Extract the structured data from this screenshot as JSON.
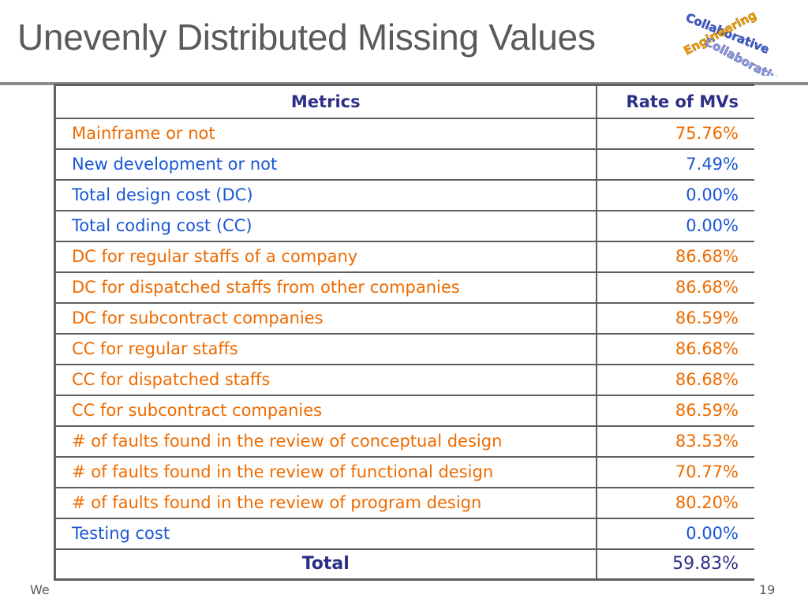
{
  "slide": {
    "title": "Unevenly Distributed Missing Values",
    "footer_left": "We",
    "page_number": "19"
  },
  "logo": {
    "lines": [
      "Collaborative",
      "Engineering",
      "Collaborative"
    ],
    "colors": [
      "#3a5fd0",
      "#f5a000",
      "#2d2f86"
    ]
  },
  "table": {
    "headers": [
      "Metrics",
      "Rate of MVs"
    ],
    "rows": [
      {
        "metric": "Mainframe or not",
        "rate": "75.76%",
        "color": "orange"
      },
      {
        "metric": "New development or not",
        "rate": "7.49%",
        "color": "blue"
      },
      {
        "metric": "Total design cost (DC)",
        "rate": "0.00%",
        "color": "blue"
      },
      {
        "metric": "Total coding cost (CC)",
        "rate": "0.00%",
        "color": "blue"
      },
      {
        "metric": "DC for regular staffs of a company",
        "rate": "86.68%",
        "color": "orange"
      },
      {
        "metric": "DC for dispatched staffs from other companies",
        "rate": "86.68%",
        "color": "orange"
      },
      {
        "metric": "DC for subcontract companies",
        "rate": "86.59%",
        "color": "orange"
      },
      {
        "metric": "CC for regular staffs",
        "rate": "86.68%",
        "color": "orange"
      },
      {
        "metric": "CC for dispatched staffs",
        "rate": "86.68%",
        "color": "orange"
      },
      {
        "metric": "CC for subcontract companies",
        "rate": "86.59%",
        "color": "orange"
      },
      {
        "metric": "# of faults found in the review of conceptual design",
        "rate": "83.53%",
        "color": "orange"
      },
      {
        "metric": "# of faults found in the review of functional design",
        "rate": "70.77%",
        "color": "orange"
      },
      {
        "metric": "# of faults found in the review of program design",
        "rate": "80.20%",
        "color": "orange"
      },
      {
        "metric": "Testing cost",
        "rate": "0.00%",
        "color": "blue"
      }
    ],
    "total": {
      "label": "Total",
      "rate": "59.83%"
    }
  }
}
